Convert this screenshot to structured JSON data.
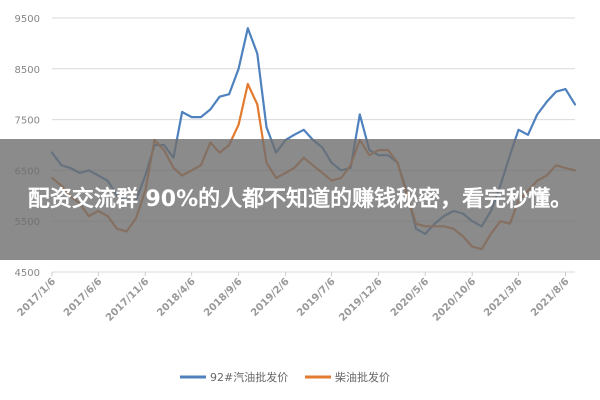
{
  "banner": {
    "text": "配资交流群 90%的人都不知道的赚钱秘密，看完秒懂。"
  },
  "chart_data": {
    "type": "line",
    "title": "",
    "xlabel": "",
    "ylabel": "",
    "ylim": [
      4500,
      9500
    ],
    "yticks": [
      "9500",
      "8500",
      "7500",
      "6500",
      "5500",
      "4500"
    ],
    "x_tick_labels": [
      "2017/1/6",
      "2017/6/6",
      "2017/11/6",
      "2018/4/6",
      "2018/9/6",
      "2019/2/6",
      "2019/7/6",
      "2019/12/6",
      "2020/5/6",
      "2020/10/6",
      "2021/3/6",
      "2021/8/6"
    ],
    "grid": "horizontal",
    "legend_position": "bottom",
    "series": [
      {
        "name": "92#汽油批发价",
        "color": "#4e81bd",
        "points": [
          [
            "2017/1/6",
            6850
          ],
          [
            "2017/2/6",
            6600
          ],
          [
            "2017/3/6",
            6550
          ],
          [
            "2017/4/6",
            6450
          ],
          [
            "2017/5/6",
            6500
          ],
          [
            "2017/6/6",
            6400
          ],
          [
            "2017/7/6",
            6300
          ],
          [
            "2017/8/6",
            6000
          ],
          [
            "2017/9/6",
            5900
          ],
          [
            "2017/10/6",
            5900
          ],
          [
            "2017/11/6",
            6400
          ],
          [
            "2017/12/6",
            7000
          ],
          [
            "2018/1/6",
            7000
          ],
          [
            "2018/2/6",
            6750
          ],
          [
            "2018/3/6",
            7650
          ],
          [
            "2018/4/6",
            7550
          ],
          [
            "2018/5/6",
            7550
          ],
          [
            "2018/6/6",
            7700
          ],
          [
            "2018/7/6",
            7950
          ],
          [
            "2018/8/6",
            8000
          ],
          [
            "2018/9/6",
            8500
          ],
          [
            "2018/10/6",
            9300
          ],
          [
            "2018/11/6",
            8800
          ],
          [
            "2018/12/6",
            7350
          ],
          [
            "2019/1/6",
            6850
          ],
          [
            "2019/2/6",
            7100
          ],
          [
            "2019/3/6",
            7200
          ],
          [
            "2019/4/6",
            7300
          ],
          [
            "2019/5/6",
            7100
          ],
          [
            "2019/6/6",
            6950
          ],
          [
            "2019/7/6",
            6650
          ],
          [
            "2019/8/6",
            6500
          ],
          [
            "2019/9/6",
            6550
          ],
          [
            "2019/10/6",
            7600
          ],
          [
            "2019/11/6",
            6900
          ],
          [
            "2019/12/6",
            6800
          ],
          [
            "2020/1/6",
            6800
          ],
          [
            "2020/2/6",
            6650
          ],
          [
            "2020/3/6",
            6100
          ],
          [
            "2020/4/6",
            5350
          ],
          [
            "2020/5/6",
            5250
          ],
          [
            "2020/6/6",
            5450
          ],
          [
            "2020/7/6",
            5600
          ],
          [
            "2020/8/6",
            5700
          ],
          [
            "2020/9/6",
            5650
          ],
          [
            "2020/10/6",
            5500
          ],
          [
            "2020/11/6",
            5400
          ],
          [
            "2020/12/6",
            5700
          ],
          [
            "2021/1/6",
            6200
          ],
          [
            "2021/2/6",
            6800
          ],
          [
            "2021/3/6",
            7300
          ],
          [
            "2021/4/6",
            7200
          ],
          [
            "2021/5/6",
            7600
          ],
          [
            "2021/6/6",
            7850
          ],
          [
            "2021/7/6",
            8050
          ],
          [
            "2021/8/6",
            8100
          ],
          [
            "2021/9/6",
            7800
          ]
        ]
      },
      {
        "name": "柴油批发价",
        "color": "#e27a2f",
        "points": [
          [
            "2017/1/6",
            6350
          ],
          [
            "2017/2/6",
            6200
          ],
          [
            "2017/3/6",
            6000
          ],
          [
            "2017/4/6",
            5850
          ],
          [
            "2017/5/6",
            5600
          ],
          [
            "2017/6/6",
            5700
          ],
          [
            "2017/7/6",
            5600
          ],
          [
            "2017/8/6",
            5350
          ],
          [
            "2017/9/6",
            5300
          ],
          [
            "2017/10/6",
            5550
          ],
          [
            "2017/11/6",
            6100
          ],
          [
            "2017/12/6",
            7100
          ],
          [
            "2018/1/6",
            6900
          ],
          [
            "2018/2/6",
            6550
          ],
          [
            "2018/3/6",
            6400
          ],
          [
            "2018/4/6",
            6500
          ],
          [
            "2018/5/6",
            6600
          ],
          [
            "2018/6/6",
            7050
          ],
          [
            "2018/7/6",
            6850
          ],
          [
            "2018/8/6",
            7000
          ],
          [
            "2018/9/6",
            7400
          ],
          [
            "2018/10/6",
            8200
          ],
          [
            "2018/11/6",
            7800
          ],
          [
            "2018/12/6",
            6650
          ],
          [
            "2019/1/6",
            6350
          ],
          [
            "2019/2/6",
            6450
          ],
          [
            "2019/3/6",
            6550
          ],
          [
            "2019/4/6",
            6750
          ],
          [
            "2019/5/6",
            6600
          ],
          [
            "2019/6/6",
            6450
          ],
          [
            "2019/7/6",
            6300
          ],
          [
            "2019/8/6",
            6350
          ],
          [
            "2019/9/6",
            6600
          ],
          [
            "2019/10/6",
            7100
          ],
          [
            "2019/11/6",
            6800
          ],
          [
            "2019/12/6",
            6900
          ],
          [
            "2020/1/6",
            6900
          ],
          [
            "2020/2/6",
            6650
          ],
          [
            "2020/3/6",
            6050
          ],
          [
            "2020/4/6",
            5450
          ],
          [
            "2020/5/6",
            5400
          ],
          [
            "2020/6/6",
            5400
          ],
          [
            "2020/7/6",
            5400
          ],
          [
            "2020/8/6",
            5350
          ],
          [
            "2020/9/6",
            5200
          ],
          [
            "2020/10/6",
            5000
          ],
          [
            "2020/11/6",
            4950
          ],
          [
            "2020/12/6",
            5250
          ],
          [
            "2021/1/6",
            5500
          ],
          [
            "2021/2/6",
            5450
          ],
          [
            "2021/3/6",
            5900
          ],
          [
            "2021/4/6",
            6100
          ],
          [
            "2021/5/6",
            6300
          ],
          [
            "2021/6/6",
            6400
          ],
          [
            "2021/7/6",
            6600
          ],
          [
            "2021/8/6",
            6550
          ],
          [
            "2021/9/6",
            6500
          ]
        ]
      }
    ]
  }
}
